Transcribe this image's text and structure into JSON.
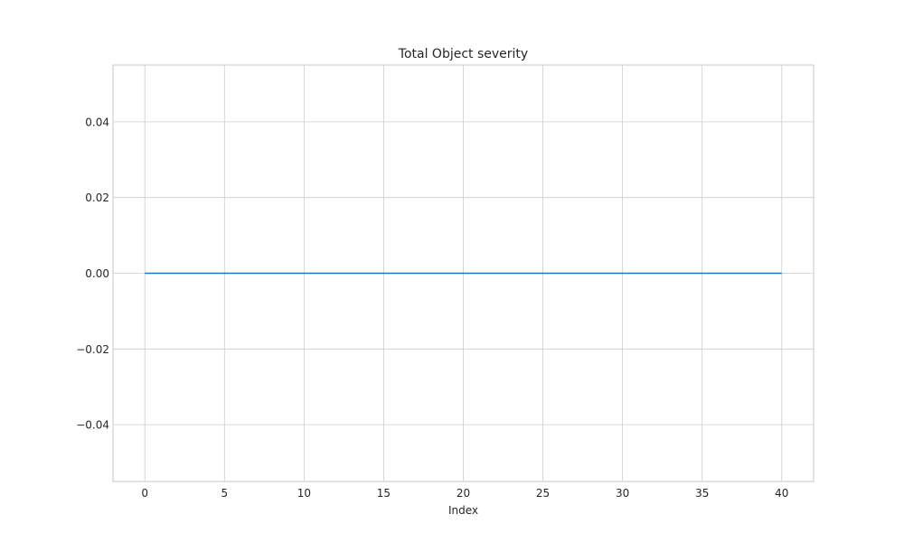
{
  "chart_data": {
    "type": "line",
    "title": "Total Object severity",
    "xlabel": "Index",
    "ylabel": "",
    "xlim": [
      -2,
      42
    ],
    "ylim": [
      -0.055,
      0.055
    ],
    "xticks": [
      0,
      5,
      10,
      15,
      20,
      25,
      30,
      35,
      40
    ],
    "yticks": [
      -0.04,
      -0.02,
      0.0,
      0.02,
      0.04
    ],
    "ytick_labels": [
      "−0.04",
      "−0.02",
      "0.00",
      "0.02",
      "0.04"
    ],
    "grid": true,
    "series": [
      {
        "color": "#1f77b4",
        "x": [
          0,
          1,
          2,
          3,
          4,
          5,
          6,
          7,
          8,
          9,
          10,
          11,
          12,
          13,
          14,
          15,
          16,
          17,
          18,
          19,
          20,
          21,
          22,
          23,
          24,
          25,
          26,
          27,
          28,
          29,
          30,
          31,
          32,
          33,
          34,
          35,
          36,
          37,
          38,
          39,
          40
        ],
        "values": [
          0,
          0,
          0,
          0,
          0,
          0,
          0,
          0,
          0,
          0,
          0,
          0,
          0,
          0,
          0,
          0,
          0,
          0,
          0,
          0,
          0,
          0,
          0,
          0,
          0,
          0,
          0,
          0,
          0,
          0,
          0,
          0,
          0,
          0,
          0,
          0,
          0,
          0,
          0,
          0,
          0
        ]
      }
    ]
  }
}
